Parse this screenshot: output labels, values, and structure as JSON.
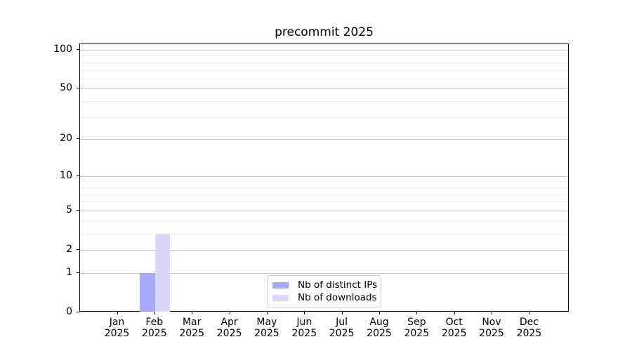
{
  "chart_data": {
    "type": "bar",
    "title": "precommit 2025",
    "categories": [
      {
        "month": "Jan",
        "year": "2025"
      },
      {
        "month": "Feb",
        "year": "2025"
      },
      {
        "month": "Mar",
        "year": "2025"
      },
      {
        "month": "Apr",
        "year": "2025"
      },
      {
        "month": "May",
        "year": "2025"
      },
      {
        "month": "Jun",
        "year": "2025"
      },
      {
        "month": "Jul",
        "year": "2025"
      },
      {
        "month": "Aug",
        "year": "2025"
      },
      {
        "month": "Sep",
        "year": "2025"
      },
      {
        "month": "Oct",
        "year": "2025"
      },
      {
        "month": "Nov",
        "year": "2025"
      },
      {
        "month": "Dec",
        "year": "2025"
      }
    ],
    "series": [
      {
        "name": "Nb of distinct IPs",
        "color": "#a8a8f8",
        "values": [
          0,
          1,
          0,
          0,
          0,
          0,
          0,
          0,
          0,
          0,
          0,
          0
        ]
      },
      {
        "name": "Nb of downloads",
        "color": "#d8d8fa",
        "values": [
          0,
          3,
          0,
          0,
          0,
          0,
          0,
          0,
          0,
          0,
          0,
          0
        ]
      }
    ],
    "yaxis": {
      "scale": "log1p",
      "range": [
        0,
        100
      ],
      "tick_values": [
        0,
        1,
        2,
        5,
        10,
        20,
        50,
        100
      ],
      "tick_labels": [
        "0",
        "1",
        "2",
        "5",
        "10",
        "20",
        "50",
        "100"
      ],
      "minor_gridline_values": [
        3,
        4,
        6,
        7,
        8,
        9,
        30,
        40,
        60,
        70,
        80,
        90
      ]
    },
    "legend": {
      "position": "lower center"
    },
    "grid": true,
    "colors": {
      "background": "#ffffff",
      "axis": "#000000",
      "text": "#000000",
      "major_grid": "#c9c9c9",
      "minor_grid": "#ededed",
      "legend_border": "#cccccc"
    }
  }
}
